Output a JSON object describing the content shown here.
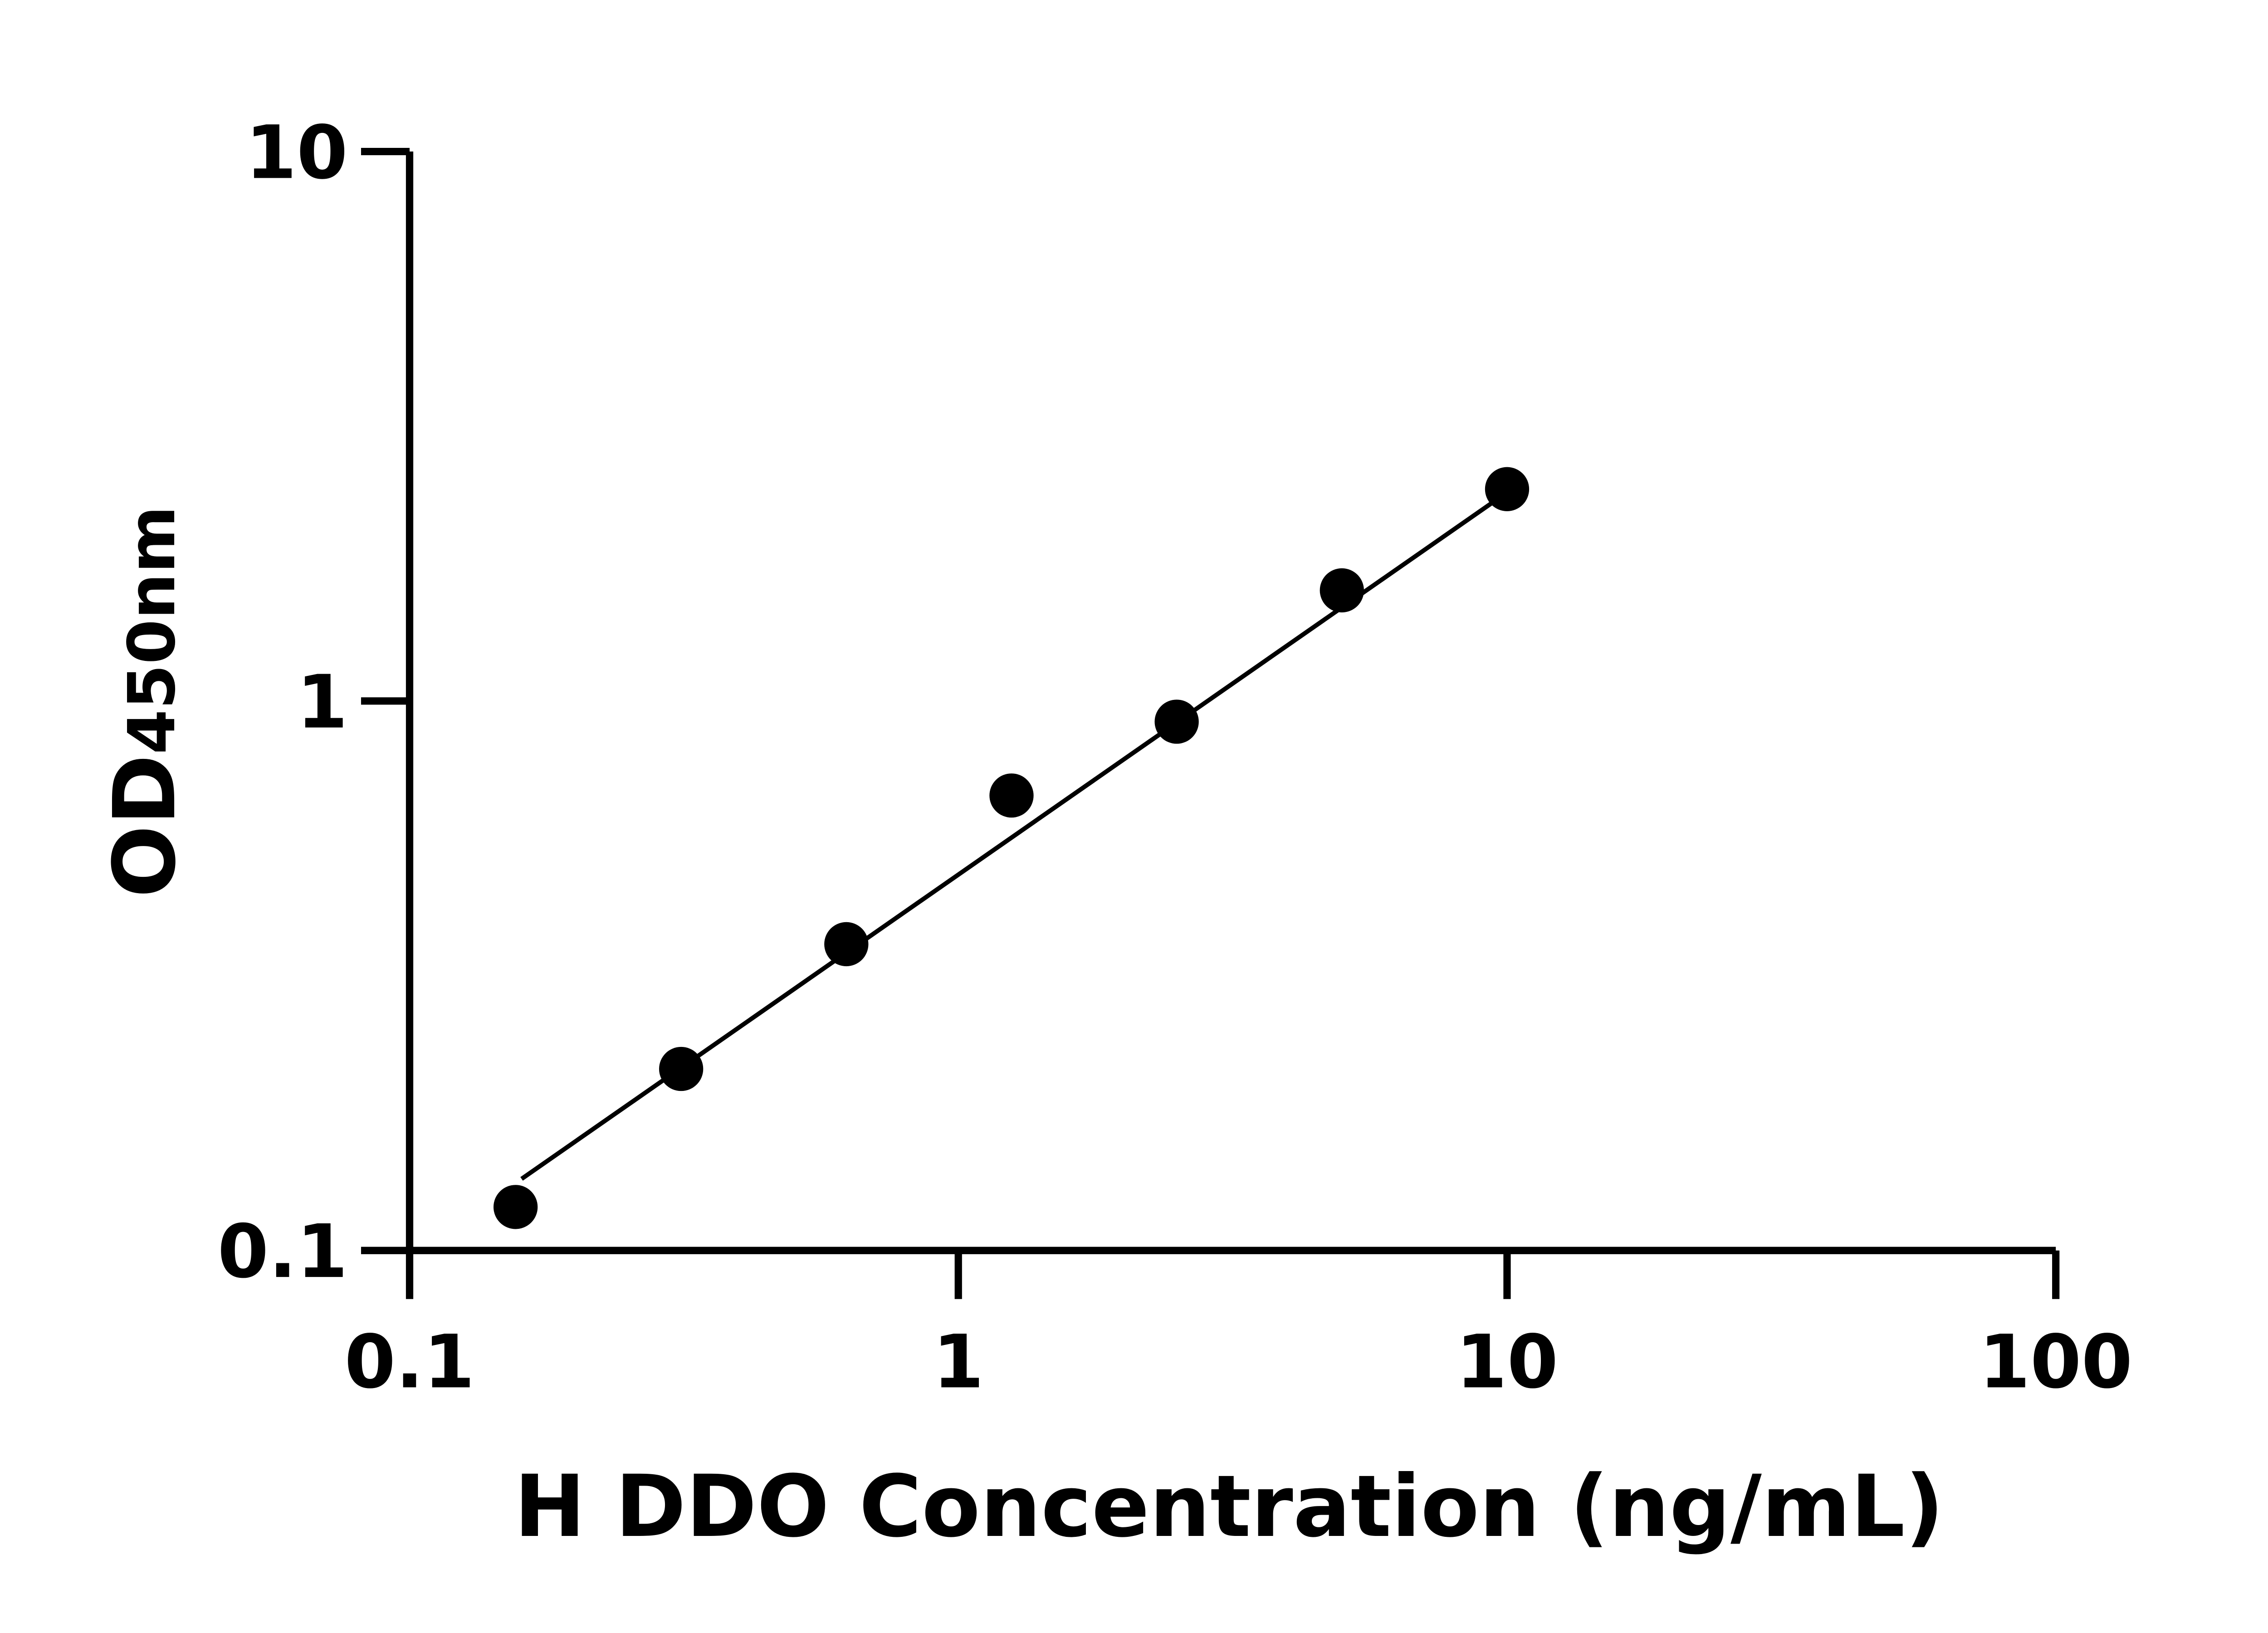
{
  "chart_data": {
    "type": "scatter",
    "title": "",
    "xlabel": "H DDO Concentration (ng/mL)",
    "ylabel": {
      "main": "OD",
      "sub": "450nm"
    },
    "xscale": "log",
    "yscale": "log",
    "xlim": [
      0.1,
      100
    ],
    "ylim": [
      0.1,
      10
    ],
    "xticks": [
      "0.1",
      "1",
      "10",
      "100"
    ],
    "yticks": [
      "0.1",
      "1",
      "10"
    ],
    "grid": false,
    "point_color": "#000000",
    "points": [
      {
        "x": 0.156,
        "y": 0.12
      },
      {
        "x": 0.3125,
        "y": 0.214
      },
      {
        "x": 0.625,
        "y": 0.361
      },
      {
        "x": 1.25,
        "y": 0.673
      },
      {
        "x": 2.5,
        "y": 0.917
      },
      {
        "x": 5,
        "y": 1.59
      },
      {
        "x": 10,
        "y": 2.43
      }
    ],
    "fit_line": {
      "x": [
        0.16,
        9.6
      ],
      "y": [
        0.135,
        2.33
      ]
    }
  }
}
